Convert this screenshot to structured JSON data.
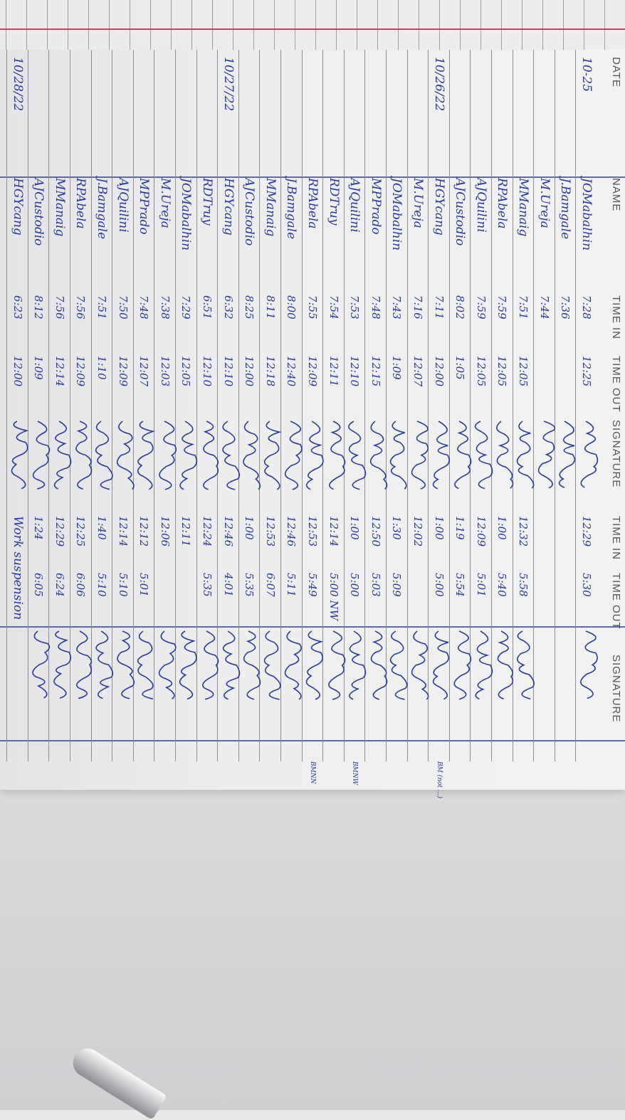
{
  "header": [
    "DATE",
    "NAME",
    "TIME IN",
    "TIME OUT",
    "SIGNATURE",
    "TIME IN",
    "TIME OUT",
    "SIGNATURE"
  ],
  "colors": {
    "ink": "#2a3a9a",
    "rule": "#8e8e96",
    "margin_red": "#c0485c"
  },
  "rows": [
    {
      "date": "10-25",
      "name": "JOMabalhin",
      "in1": "7:28",
      "out1": "12:25",
      "in2": "12:29",
      "out2": "5:30"
    },
    {
      "date": "",
      "name": "J.Bamgale",
      "in1": "7:36",
      "out1": "",
      "in2": "",
      "out2": ""
    },
    {
      "date": "",
      "name": "M.Ureja",
      "in1": "7:44",
      "out1": "",
      "in2": "",
      "out2": ""
    },
    {
      "date": "",
      "name": "MManaig",
      "in1": "7:51",
      "out1": "12:05",
      "in2": "12:32",
      "out2": "5:58"
    },
    {
      "date": "",
      "name": "RPAbela",
      "in1": "7:59",
      "out1": "12:05",
      "in2": "1:00",
      "out2": "5:40"
    },
    {
      "date": "",
      "name": "AJQuilini",
      "in1": "7:59",
      "out1": "12:05",
      "in2": "12:09",
      "out2": "5:01"
    },
    {
      "date": "",
      "name": "AJCustodio",
      "in1": "8:02",
      "out1": "1:05",
      "in2": "1:19",
      "out2": "5:54"
    },
    {
      "date": "10/26/22",
      "name": "HGYcang",
      "in1": "7:11",
      "out1": "12:00",
      "in2": "1:00",
      "out2": "5:00",
      "note": "BM (not ...)"
    },
    {
      "date": "",
      "name": "M.Ureja",
      "in1": "7:16",
      "out1": "12:07",
      "in2": "12:02",
      "out2": ""
    },
    {
      "date": "",
      "name": "JOMabalhin",
      "in1": "7:43",
      "out1": "1:09",
      "in2": "1:30",
      "out2": "5:09"
    },
    {
      "date": "",
      "name": "MPPrado",
      "in1": "7:48",
      "out1": "12:15",
      "in2": "12:50",
      "out2": "5:03"
    },
    {
      "date": "",
      "name": "AJQuilini",
      "in1": "7:53",
      "out1": "12:10",
      "in2": "1:00",
      "out2": "5:00",
      "note": "BMNW"
    },
    {
      "date": "",
      "name": "RDTruy",
      "in1": "7:54",
      "out1": "12:11",
      "in2": "12:14",
      "out2": "5:00 NW"
    },
    {
      "date": "",
      "name": "RPAbela",
      "in1": "7:55",
      "out1": "12:09",
      "in2": "12:53",
      "out2": "5:49",
      "note": "BMNN"
    },
    {
      "date": "",
      "name": "J.Bamgale",
      "in1": "8:00",
      "out1": "12:40",
      "in2": "12:46",
      "out2": "5:11"
    },
    {
      "date": "",
      "name": "MManaig",
      "in1": "8:11",
      "out1": "12:18",
      "in2": "12:53",
      "out2": "6:07"
    },
    {
      "date": "",
      "name": "AJCustodio",
      "in1": "8:25",
      "out1": "12:00",
      "in2": "1:00",
      "out2": "5:35"
    },
    {
      "date": "10/27/22",
      "name": "HGYcang",
      "in1": "6:32",
      "out1": "12:10",
      "in2": "12:46",
      "out2": "4:01"
    },
    {
      "date": "",
      "name": "RDTruy",
      "in1": "6:51",
      "out1": "12:10",
      "in2": "12:24",
      "out2": "5:35"
    },
    {
      "date": "",
      "name": "JOMabalhin",
      "in1": "7:29",
      "out1": "12:05",
      "in2": "12:11",
      "out2": ""
    },
    {
      "date": "",
      "name": "M.Ureja",
      "in1": "7:38",
      "out1": "12:03",
      "in2": "12:06",
      "out2": ""
    },
    {
      "date": "",
      "name": "MPPrado",
      "in1": "7:48",
      "out1": "12:07",
      "in2": "12:12",
      "out2": "5:01"
    },
    {
      "date": "",
      "name": "AJQuilini",
      "in1": "7:50",
      "out1": "12:09",
      "in2": "12:14",
      "out2": "5:10"
    },
    {
      "date": "",
      "name": "J.Bamgale",
      "in1": "7:51",
      "out1": "1:10",
      "in2": "1:40",
      "out2": "5:10"
    },
    {
      "date": "",
      "name": "RPAbela",
      "in1": "7:56",
      "out1": "12:09",
      "in2": "12:25",
      "out2": "6:06"
    },
    {
      "date": "",
      "name": "MManaig",
      "in1": "7:56",
      "out1": "12:14",
      "in2": "12:29",
      "out2": "6:24"
    },
    {
      "date": "",
      "name": "AJCustodio",
      "in1": "8:12",
      "out1": "1:09",
      "in2": "1:24",
      "out2": "6:05"
    },
    {
      "date": "10/28/22",
      "name": "HGYcang",
      "in1": "6:23",
      "out1": "12:00",
      "in2": "Work suspension",
      "out2": ""
    }
  ]
}
